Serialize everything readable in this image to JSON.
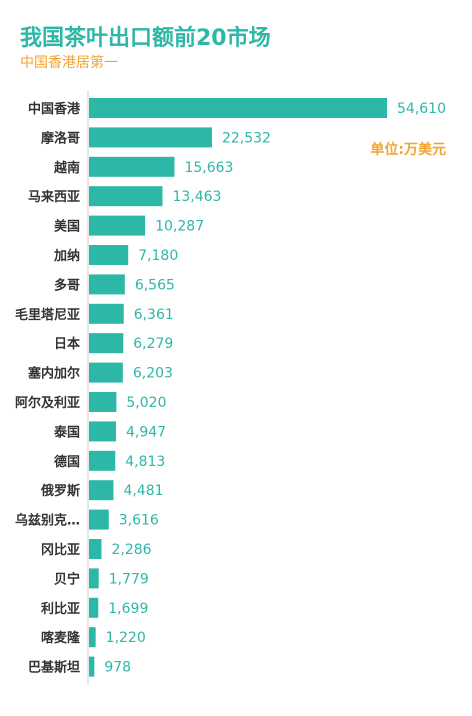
{
  "title": "我国茶叶出口额前20市场",
  "subtitle": "中国香港居第一",
  "unit_label": "单位:万美元",
  "colors": {
    "bar": "#2db7a7",
    "title": "#2db7a7",
    "accent": "#f0a532",
    "axis": "#cccccc"
  },
  "chart_data": {
    "type": "bar",
    "orientation": "horizontal",
    "title": "我国茶叶出口额前20市场",
    "subtitle": "中国香港居第一",
    "unit": "单位:万美元",
    "categories": [
      "中国香港",
      "摩洛哥",
      "越南",
      "马来西亚",
      "美国",
      "加纳",
      "多哥",
      "毛里塔尼亚",
      "日本",
      "塞内加尔",
      "阿尔及利亚",
      "泰国",
      "德国",
      "俄罗斯",
      "乌兹别克…",
      "冈比亚",
      "贝宁",
      "利比亚",
      "喀麦隆",
      "巴基斯坦"
    ],
    "values": [
      54610,
      22532,
      15663,
      13463,
      10287,
      7180,
      6565,
      6361,
      6279,
      6203,
      5020,
      4947,
      4813,
      4481,
      3616,
      2286,
      1779,
      1699,
      1220,
      978
    ],
    "value_labels": [
      "54,610",
      "22,532",
      "15,663",
      "13,463",
      "10,287",
      "7,180",
      "6,565",
      "6,361",
      "6,279",
      "6,203",
      "5,020",
      "4,947",
      "4,813",
      "4,481",
      "3,616",
      "2,286",
      "1,779",
      "1,699",
      "1,220",
      "978"
    ],
    "xlim": [
      0,
      54610
    ],
    "grid": false,
    "legend": "none"
  }
}
